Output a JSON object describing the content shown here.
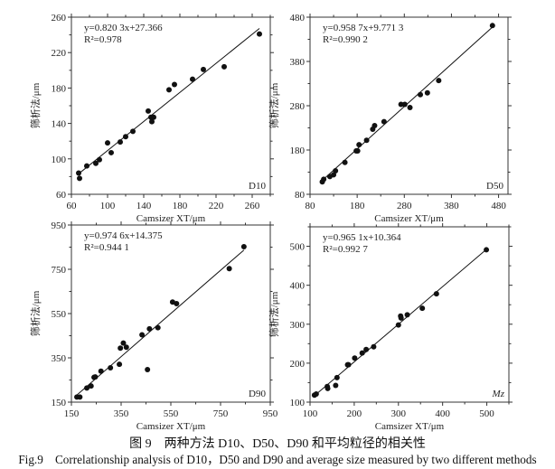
{
  "chart_data": [
    {
      "type": "scatter",
      "panel_label": "D10",
      "equation": "y=0.820 3x+27.366",
      "r2": "R²=0.978",
      "fit": {
        "slope": 0.8203,
        "intercept": 27.366
      },
      "xlabel": "Camsizer XT/μm",
      "ylabel": "筛析法/μm",
      "xlim": [
        60,
        280
      ],
      "ylim": [
        60,
        260
      ],
      "xticks": [
        60,
        100,
        140,
        180,
        220,
        260
      ],
      "yticks": [
        60,
        100,
        140,
        180,
        220,
        260
      ],
      "x": [
        68,
        69,
        77,
        87,
        91,
        100,
        104,
        114,
        120,
        128,
        145,
        148,
        149,
        150,
        151,
        168,
        174,
        194,
        206,
        229,
        268
      ],
      "y": [
        84,
        78,
        92,
        95,
        99,
        118,
        107,
        119,
        125,
        131,
        154,
        147,
        142,
        147,
        147,
        178,
        184,
        190,
        201,
        204,
        241
      ]
    },
    {
      "type": "scatter",
      "panel_label": "D50",
      "equation": "y=0.958 7x+9.771 3",
      "r2": "R²=0.990 2",
      "fit": {
        "slope": 0.9587,
        "intercept": 9.7713
      },
      "xlabel": "Camsizer XT/μm",
      "ylabel": "筛析法/μm",
      "xlim": [
        80,
        500
      ],
      "ylim": [
        80,
        480
      ],
      "xticks": [
        80,
        180,
        280,
        380,
        480
      ],
      "yticks": [
        80,
        180,
        280,
        380,
        480
      ],
      "x": [
        106,
        109,
        122,
        130,
        134,
        154,
        178,
        181,
        184,
        200,
        213,
        217,
        237,
        273,
        281,
        292,
        314,
        329,
        353,
        467
      ],
      "y": [
        108,
        114,
        120,
        124,
        133,
        152,
        178,
        178,
        192,
        202,
        227,
        235,
        244,
        283,
        283,
        276,
        305,
        309,
        337,
        461
      ]
    },
    {
      "type": "scatter",
      "panel_label": "D90",
      "equation": "y=0.974 6x+14.375",
      "r2": "R²=0.944 1",
      "fit": {
        "slope": 0.9746,
        "intercept": 14.375
      },
      "xlabel": "Camsizer XT/μm",
      "ylabel": "筛析法/μm",
      "xlim": [
        150,
        950
      ],
      "ylim": [
        150,
        950
      ],
      "xticks": [
        150,
        350,
        550,
        750,
        950
      ],
      "yticks": [
        150,
        350,
        550,
        750,
        950
      ],
      "x": [
        172,
        184,
        212,
        229,
        241,
        246,
        269,
        307,
        343,
        347,
        359,
        371,
        434,
        456,
        464,
        498,
        557,
        573,
        785,
        844
      ],
      "y": [
        173,
        173,
        214,
        223,
        262,
        264,
        290,
        305,
        321,
        394,
        417,
        398,
        454,
        297,
        481,
        486,
        602,
        595,
        753,
        852
      ]
    },
    {
      "type": "scatter",
      "panel_label": "Mz",
      "equation": "y=0.965 1x+10.364",
      "r2": "R²=0.992 7",
      "fit": {
        "slope": 0.9651,
        "intercept": 10.364
      },
      "xlabel": "Camsizer XT/μm",
      "ylabel": "筛析法/μm",
      "xlim": [
        100,
        550
      ],
      "ylim": [
        100,
        550
      ],
      "xticks": [
        100,
        200,
        300,
        400,
        500
      ],
      "yticks": [
        100,
        200,
        300,
        400,
        500
      ],
      "x": [
        110,
        114,
        139,
        140,
        158,
        161,
        185,
        187,
        201,
        218,
        227,
        244,
        300,
        305,
        306,
        320,
        354,
        386,
        499
      ],
      "y": [
        118,
        121,
        140,
        135,
        143,
        163,
        196,
        196,
        213,
        226,
        235,
        242,
        298,
        321,
        316,
        324,
        341,
        378,
        491
      ]
    }
  ],
  "caption": {
    "cn": "图 9　两种方法 D10、D50、D90 和平均粒径的相关性",
    "en": "Fig.9　Correlationship analysis of D10，D50 and D90 and average size measured by two different methods"
  }
}
